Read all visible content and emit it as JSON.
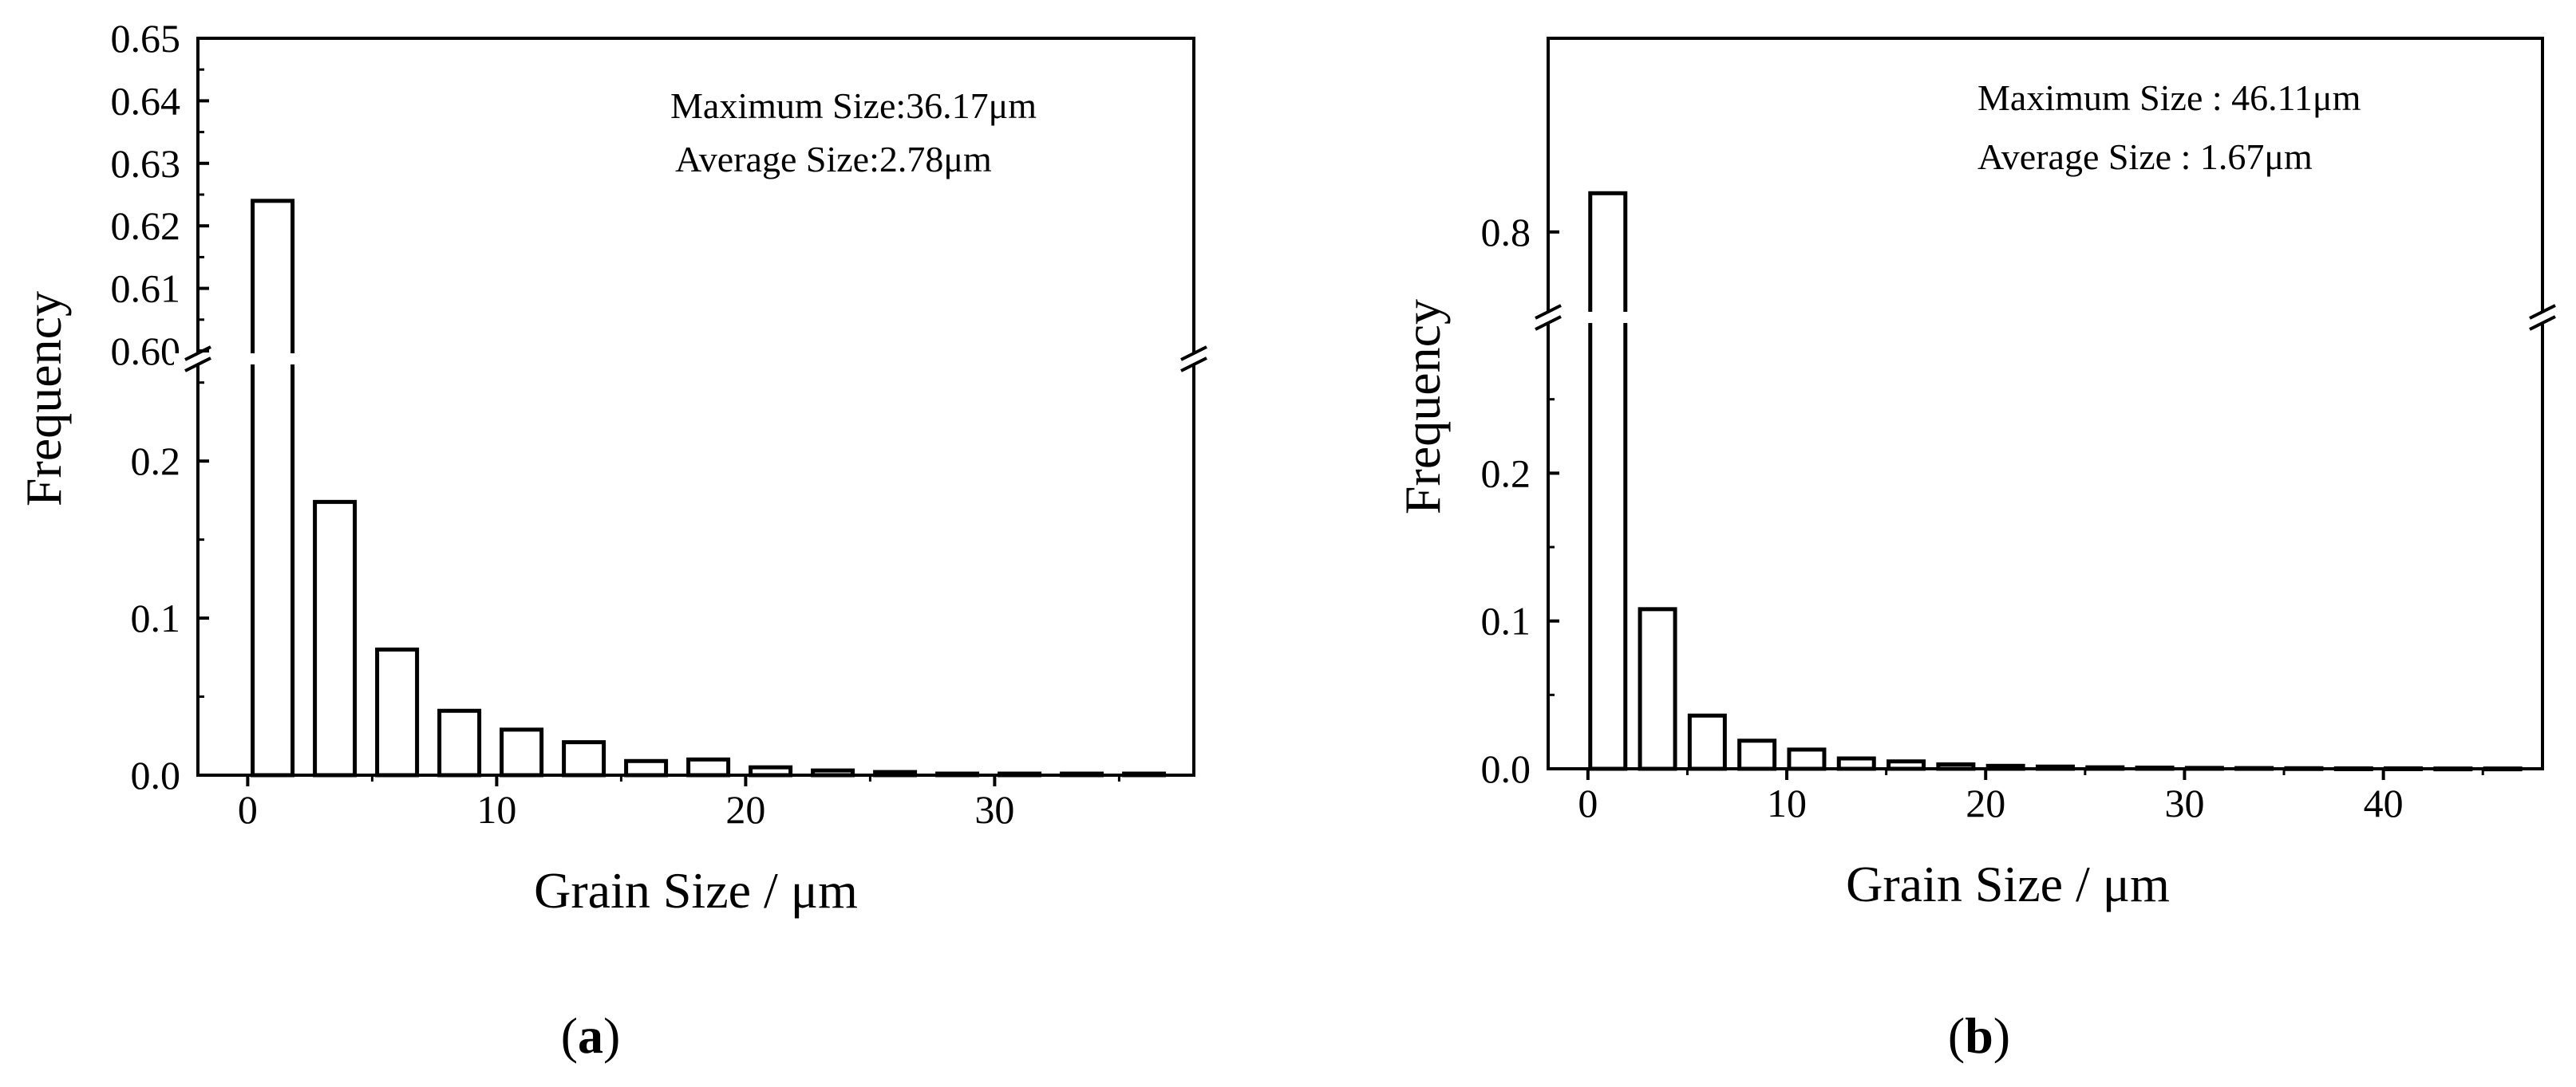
{
  "chart_data": [
    {
      "type": "bar",
      "panel_label": "a",
      "annotations": [
        "Maximum Size:36.17μm",
        "Average Size:2.78μm"
      ],
      "xlabel": "Grain Size / μm",
      "ylabel": "Frequency",
      "x": [
        1,
        3.5,
        6,
        8.5,
        11,
        13.5,
        16,
        18.5,
        21,
        23.5,
        26,
        28.5,
        31,
        33.5,
        36
      ],
      "values": [
        0.624,
        0.174,
        0.08,
        0.041,
        0.029,
        0.021,
        0.009,
        0.01,
        0.005,
        0.003,
        0.002,
        0.001,
        0.001,
        0.001,
        0.001
      ],
      "xlim": [
        -2,
        38
      ],
      "xticks": [
        "0",
        "10",
        "20",
        "30"
      ],
      "xtick_values": [
        0,
        10,
        20,
        30
      ],
      "y_axis_break": true,
      "ylim_lower": [
        0,
        0.26
      ],
      "ylim_upper": [
        0.6,
        0.65
      ],
      "yticks_lower": [
        "0.0",
        "0.1",
        "0.2"
      ],
      "ytick_values_lower": [
        0,
        0.1,
        0.2
      ],
      "yticks_upper": [
        "0.60",
        "0.61",
        "0.62",
        "0.63",
        "0.64",
        "0.65"
      ],
      "ytick_values_upper": [
        0.6,
        0.61,
        0.62,
        0.63,
        0.64,
        0.65
      ],
      "grid": false
    },
    {
      "type": "bar",
      "panel_label": "b",
      "annotations": [
        "Maximum Size : 46.11μm",
        "Average Size : 1.67μm"
      ],
      "xlabel": "Grain Size / μm",
      "ylabel": "Frequency",
      "x": [
        1,
        3.5,
        6,
        8.5,
        11,
        13.5,
        16,
        18.5,
        21,
        23.5,
        26,
        28.5,
        31,
        33.5,
        36,
        38.5,
        41,
        43.5,
        46
      ],
      "values": [
        0.81,
        0.108,
        0.036,
        0.019,
        0.013,
        0.007,
        0.005,
        0.003,
        0.002,
        0.0015,
        0.001,
        0.0008,
        0.0006,
        0.0005,
        0.0004,
        0.0003,
        0.0003,
        0.0002,
        0.0002
      ],
      "xlim": [
        -2,
        48
      ],
      "xticks": [
        "0",
        "10",
        "20",
        "30",
        "40"
      ],
      "xtick_values": [
        0,
        10,
        20,
        30,
        40
      ],
      "y_axis_break": true,
      "ylim_lower": [
        0,
        0.3
      ],
      "ylim_upper": [
        0.78,
        0.85
      ],
      "yticks_lower": [
        "0.0",
        "0.1",
        "0.2"
      ],
      "ytick_values_lower": [
        0,
        0.1,
        0.2
      ],
      "yticks_upper": [
        "0.8"
      ],
      "ytick_values_upper": [
        0.8
      ],
      "grid": false
    }
  ]
}
